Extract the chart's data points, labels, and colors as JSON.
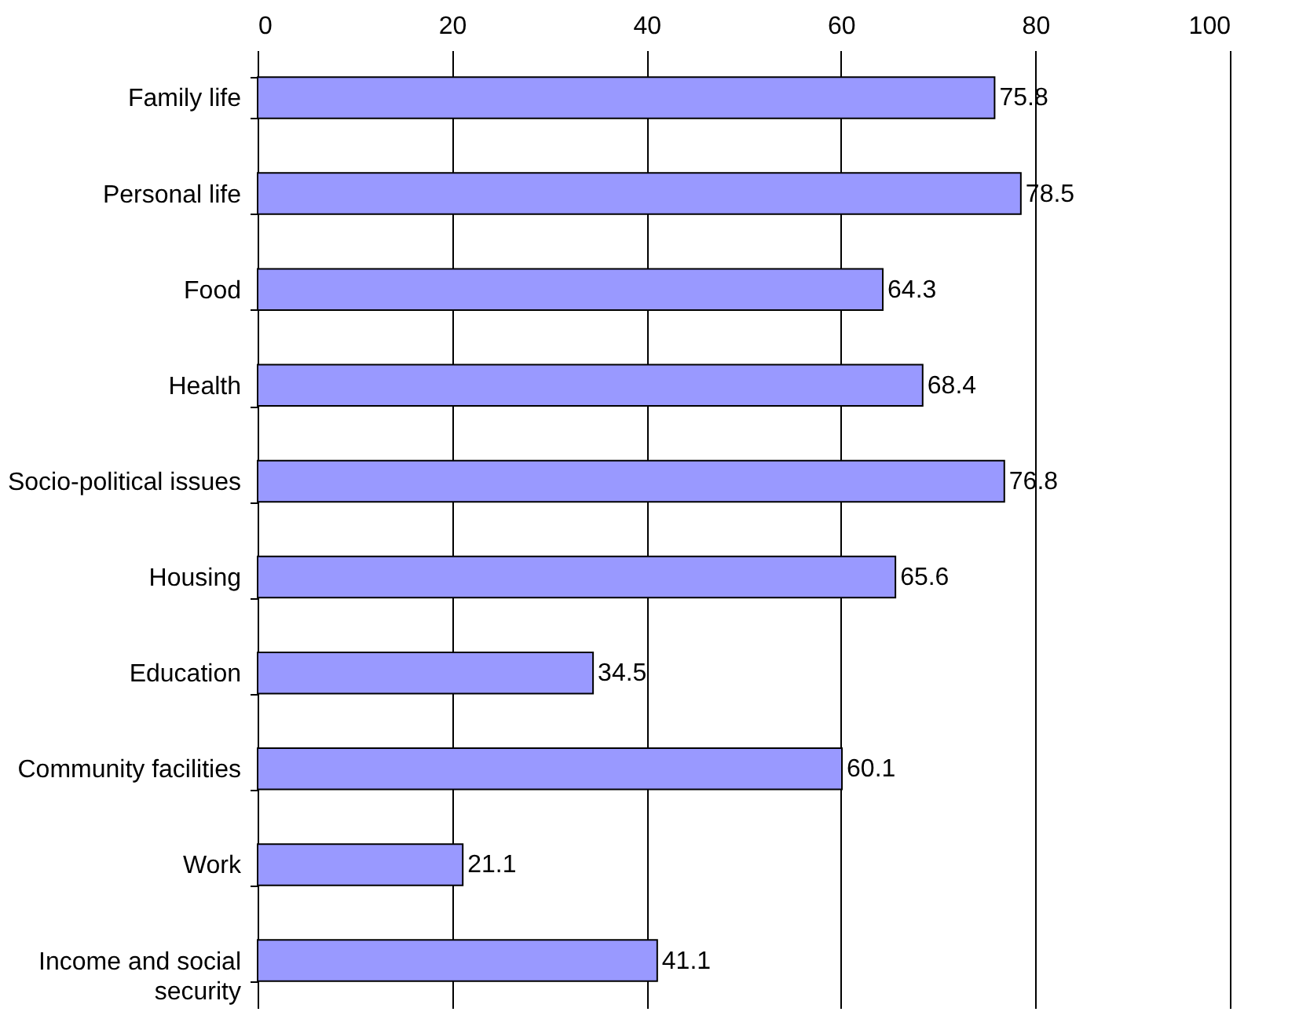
{
  "chart_data": {
    "type": "bar",
    "orientation": "horizontal",
    "categories": [
      "Family life",
      "Personal life",
      "Food",
      "Health",
      "Socio-political issues",
      "Housing",
      "Education",
      "Community facilities",
      "Work",
      "Income and social security"
    ],
    "values": [
      75.8,
      78.5,
      64.3,
      68.4,
      76.8,
      65.6,
      34.5,
      60.1,
      21.1,
      41.1
    ],
    "color": "#9999ff",
    "xlim": [
      0,
      100
    ],
    "xticks": [
      0,
      20,
      40,
      60,
      80,
      100
    ],
    "grid": "x",
    "data_labels": true
  }
}
